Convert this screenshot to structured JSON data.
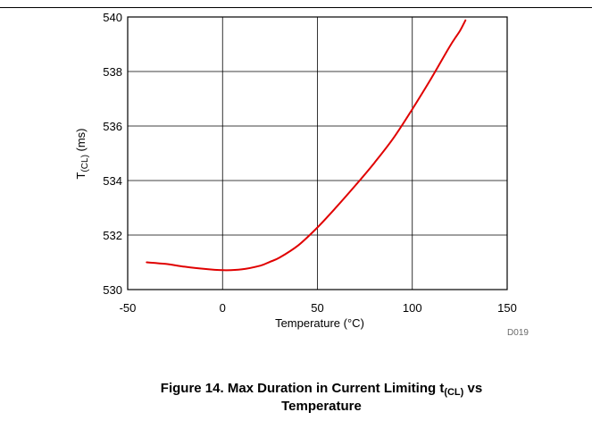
{
  "chart_data": {
    "type": "line",
    "figure_code": "D019",
    "xlabel": {
      "text": "Temperature (",
      "unit": "°C",
      "close": ")"
    },
    "ylabel": {
      "main": "T",
      "sub": "(CL)",
      "suffix": " (ms)"
    },
    "xlim": [
      -50,
      150
    ],
    "ylim": [
      530,
      540
    ],
    "x_ticks": [
      -50,
      0,
      50,
      100,
      150
    ],
    "y_ticks": [
      530,
      532,
      534,
      536,
      538,
      540
    ],
    "grid": true,
    "line_color": "#e00000",
    "series": [
      {
        "x": [
          -40,
          -30,
          -20,
          -10,
          0,
          10,
          20,
          25,
          30,
          40,
          50,
          60,
          70,
          80,
          90,
          100,
          110,
          120,
          125,
          128
        ],
        "y": [
          531.0,
          530.94,
          530.84,
          530.76,
          530.71,
          530.74,
          530.88,
          531.02,
          531.17,
          531.63,
          532.28,
          533.03,
          533.82,
          534.65,
          535.55,
          536.62,
          537.75,
          538.95,
          539.48,
          539.88
        ]
      }
    ]
  },
  "caption": {
    "prefix": "Figure 14. Max Duration in Current Limiting t",
    "sub": "(CL)",
    "suffix": " vs",
    "line2": "Temperature"
  }
}
